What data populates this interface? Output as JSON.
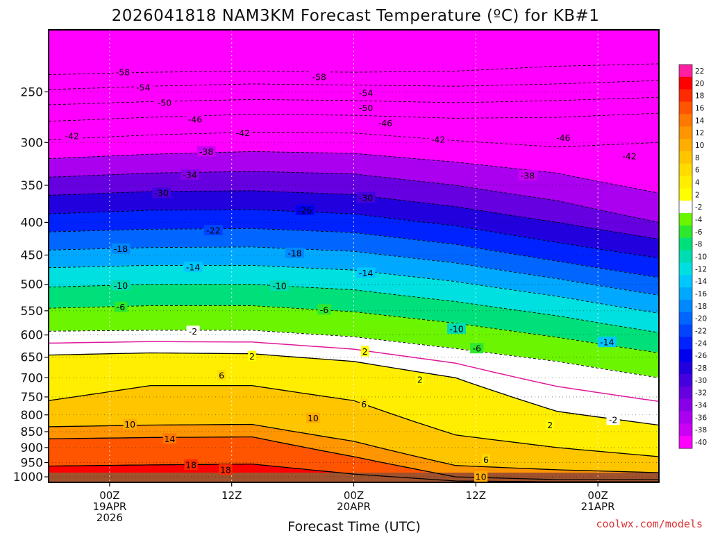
{
  "chart_data": {
    "type": "heatmap",
    "title": "2026041818 NAM3KM Forecast Temperature (ºC) for KB#1",
    "xlabel": "Forecast Time (UTC)",
    "ylabel": "",
    "credit": "coolwx.com/models",
    "x_ticks": [
      {
        "label": [
          "00Z",
          "19APR",
          "2026"
        ],
        "hour": 6
      },
      {
        "label": [
          "12Z"
        ],
        "hour": 18
      },
      {
        "label": [
          "00Z",
          "20APR"
        ],
        "hour": 30
      },
      {
        "label": [
          "12Z"
        ],
        "hour": 42
      },
      {
        "label": [
          "00Z",
          "21APR"
        ],
        "hour": 54
      }
    ],
    "x_range_hours": [
      0,
      60
    ],
    "y_ticks": [
      250,
      300,
      350,
      400,
      450,
      500,
      550,
      600,
      650,
      700,
      750,
      800,
      850,
      900,
      950,
      1000
    ],
    "y_range_hpa": [
      200,
      1020
    ],
    "y_scale": "log-pressure",
    "grid": true,
    "colorbar": {
      "labels": [
        "22",
        "20",
        "18",
        "16",
        "14",
        "12",
        "10",
        "8",
        "6",
        "4",
        "2",
        "-2",
        "-4",
        "-6",
        "-8",
        "-10",
        "-12",
        "-14",
        "-16",
        "-18",
        "-20",
        "-22",
        "-24",
        "-26",
        "-28",
        "-30",
        "-32",
        "-34",
        "-36",
        "-38",
        "-40"
      ],
      "colors": [
        "#ff1fa0",
        "#ff0000",
        "#ff2a00",
        "#ff5500",
        "#ff7800",
        "#ff9500",
        "#ffad00",
        "#ffc600",
        "#ffdb00",
        "#ffee00",
        "#ffff00",
        "#ffffff",
        "#6bf500",
        "#2ee82e",
        "#00e07a",
        "#00dcb3",
        "#00e0e0",
        "#00c8ff",
        "#00a8ff",
        "#0088ff",
        "#0066ff",
        "#0044ff",
        "#0022ff",
        "#0000ee",
        "#2200dd",
        "#4400dd",
        "#6600e0",
        "#8800e8",
        "#aa00ef",
        "#cc00f5",
        "#ff00ff"
      ],
      "placement": "right"
    },
    "isotherms": [
      {
        "temp": -58,
        "points": [
          [
            0,
            235
          ],
          [
            10,
            233
          ],
          [
            20,
            232
          ],
          [
            30,
            233
          ],
          [
            40,
            232
          ],
          [
            50,
            228
          ],
          [
            60,
            226
          ]
        ]
      },
      {
        "temp": -54,
        "points": [
          [
            0,
            248
          ],
          [
            10,
            245
          ],
          [
            20,
            243
          ],
          [
            30,
            244
          ],
          [
            40,
            245
          ],
          [
            50,
            243
          ],
          [
            60,
            240
          ]
        ]
      },
      {
        "temp": -50,
        "points": [
          [
            0,
            262
          ],
          [
            10,
            259
          ],
          [
            20,
            257
          ],
          [
            30,
            258
          ],
          [
            40,
            260
          ],
          [
            50,
            258
          ],
          [
            60,
            255
          ]
        ]
      },
      {
        "temp": -46,
        "points": [
          [
            0,
            278
          ],
          [
            10,
            274
          ],
          [
            20,
            271
          ],
          [
            30,
            272
          ],
          [
            40,
            275
          ],
          [
            50,
            274
          ],
          [
            60,
            270
          ]
        ]
      },
      {
        "temp": -42,
        "points": [
          [
            0,
            297
          ],
          [
            10,
            292
          ],
          [
            20,
            289
          ],
          [
            30,
            290
          ],
          [
            40,
            298
          ],
          [
            50,
            305
          ],
          [
            60,
            300
          ]
        ]
      },
      {
        "temp": -38,
        "points": [
          [
            0,
            318
          ],
          [
            10,
            313
          ],
          [
            20,
            310
          ],
          [
            30,
            312
          ],
          [
            40,
            322
          ],
          [
            50,
            335
          ],
          [
            60,
            360
          ]
        ]
      },
      {
        "temp": -34,
        "points": [
          [
            0,
            340
          ],
          [
            10,
            335
          ],
          [
            20,
            333
          ],
          [
            30,
            336
          ],
          [
            40,
            350
          ],
          [
            50,
            370
          ],
          [
            60,
            400
          ]
        ]
      },
      {
        "temp": -30,
        "points": [
          [
            0,
            363
          ],
          [
            10,
            358
          ],
          [
            20,
            357
          ],
          [
            30,
            362
          ],
          [
            40,
            378
          ],
          [
            50,
            400
          ],
          [
            60,
            425
          ]
        ]
      },
      {
        "temp": -26,
        "points": [
          [
            0,
            388
          ],
          [
            10,
            383
          ],
          [
            20,
            382
          ],
          [
            30,
            388
          ],
          [
            40,
            405
          ],
          [
            50,
            430
          ],
          [
            60,
            455
          ]
        ]
      },
      {
        "temp": -22,
        "points": [
          [
            0,
            414
          ],
          [
            10,
            410
          ],
          [
            20,
            409
          ],
          [
            30,
            415
          ],
          [
            40,
            433
          ],
          [
            50,
            460
          ],
          [
            60,
            488
          ]
        ]
      },
      {
        "temp": -18,
        "points": [
          [
            0,
            442
          ],
          [
            10,
            438
          ],
          [
            20,
            437
          ],
          [
            30,
            444
          ],
          [
            40,
            463
          ],
          [
            50,
            490
          ],
          [
            60,
            520
          ]
        ]
      },
      {
        "temp": -14,
        "points": [
          [
            0,
            471
          ],
          [
            10,
            467
          ],
          [
            20,
            467
          ],
          [
            30,
            475
          ],
          [
            40,
            495
          ],
          [
            50,
            522
          ],
          [
            60,
            555
          ]
        ]
      },
      {
        "temp": -10,
        "points": [
          [
            0,
            505
          ],
          [
            10,
            500
          ],
          [
            20,
            500
          ],
          [
            30,
            510
          ],
          [
            40,
            532
          ],
          [
            50,
            560
          ],
          [
            60,
            595
          ]
        ]
      },
      {
        "temp": -6,
        "points": [
          [
            0,
            545
          ],
          [
            10,
            540
          ],
          [
            20,
            540
          ],
          [
            30,
            552
          ],
          [
            40,
            575
          ],
          [
            50,
            605
          ],
          [
            60,
            640
          ]
        ]
      },
      {
        "temp": -2,
        "points": [
          [
            0,
            592
          ],
          [
            10,
            590
          ],
          [
            20,
            590
          ],
          [
            30,
            604
          ],
          [
            40,
            630
          ],
          [
            50,
            660
          ],
          [
            60,
            700
          ]
        ]
      },
      {
        "temp": 2,
        "points": [
          [
            0,
            645
          ],
          [
            10,
            640
          ],
          [
            20,
            642
          ],
          [
            30,
            660
          ],
          [
            40,
            700
          ],
          [
            50,
            790
          ],
          [
            60,
            830
          ]
        ]
      },
      {
        "temp": 6,
        "points": [
          [
            0,
            760
          ],
          [
            10,
            720
          ],
          [
            20,
            720
          ],
          [
            30,
            760
          ],
          [
            40,
            860
          ],
          [
            50,
            900
          ],
          [
            60,
            930
          ]
        ]
      },
      {
        "temp": 10,
        "points": [
          [
            0,
            835
          ],
          [
            10,
            830
          ],
          [
            20,
            828
          ],
          [
            30,
            880
          ],
          [
            40,
            960
          ],
          [
            50,
            975
          ],
          [
            60,
            985
          ]
        ]
      },
      {
        "temp": 14,
        "points": [
          [
            0,
            872
          ],
          [
            10,
            868
          ],
          [
            20,
            866
          ],
          [
            30,
            930
          ],
          [
            40,
            1000
          ],
          [
            50,
            1010
          ],
          [
            60,
            1010
          ]
        ]
      },
      {
        "temp": 18,
        "points": [
          [
            0,
            962
          ],
          [
            10,
            958
          ],
          [
            20,
            955
          ],
          [
            30,
            990
          ],
          [
            40,
            1015
          ],
          [
            50,
            1018
          ],
          [
            60,
            1018
          ]
        ]
      }
    ],
    "contour_labels": [
      {
        "text": "-58",
        "hour": 7.3,
        "p": 233
      },
      {
        "text": "-58",
        "hour": 26.6,
        "p": 237
      },
      {
        "text": "-54",
        "hour": 9.3,
        "p": 246
      },
      {
        "text": "-54",
        "hour": 31.2,
        "p": 251
      },
      {
        "text": "-50",
        "hour": 11.4,
        "p": 260
      },
      {
        "text": "-50",
        "hour": 31.2,
        "p": 265
      },
      {
        "text": "-46",
        "hour": 14.4,
        "p": 276
      },
      {
        "text": "-46",
        "hour": 33.1,
        "p": 280
      },
      {
        "text": "-46",
        "hour": 50.6,
        "p": 295
      },
      {
        "text": "-42",
        "hour": 2.3,
        "p": 293
      },
      {
        "text": "-42",
        "hour": 19.1,
        "p": 290
      },
      {
        "text": "-42",
        "hour": 38.3,
        "p": 297
      },
      {
        "text": "-42",
        "hour": 57.1,
        "p": 315
      },
      {
        "text": "-38",
        "hour": 15.5,
        "p": 310
      },
      {
        "text": "-38",
        "hour": 47.1,
        "p": 338
      },
      {
        "text": "-34",
        "hour": 13.9,
        "p": 337
      },
      {
        "text": "-30",
        "hour": 11.1,
        "p": 360
      },
      {
        "text": "-30",
        "hour": 31.2,
        "p": 366
      },
      {
        "text": "-26",
        "hour": 25.2,
        "p": 383
      },
      {
        "text": "-22",
        "hour": 16.2,
        "p": 412
      },
      {
        "text": "-18",
        "hour": 7.1,
        "p": 440
      },
      {
        "text": "-18",
        "hour": 24.2,
        "p": 447
      },
      {
        "text": "-14",
        "hour": 14.2,
        "p": 470
      },
      {
        "text": "-14",
        "hour": 31.2,
        "p": 480
      },
      {
        "text": "-14",
        "hour": 54.9,
        "p": 616
      },
      {
        "text": "-10",
        "hour": 7.1,
        "p": 502
      },
      {
        "text": "-10",
        "hour": 22.7,
        "p": 503
      },
      {
        "text": "-10",
        "hour": 40.1,
        "p": 587
      },
      {
        "text": "-6",
        "hour": 7.1,
        "p": 543
      },
      {
        "text": "-6",
        "hour": 27.1,
        "p": 548
      },
      {
        "text": "-6",
        "hour": 42.1,
        "p": 630
      },
      {
        "text": "-2",
        "hour": 14.2,
        "p": 592
      },
      {
        "text": "-2",
        "hour": 55.5,
        "p": 815
      },
      {
        "text": "2",
        "hour": 20.0,
        "p": 648
      },
      {
        "text": "2",
        "hour": 31.1,
        "p": 637
      },
      {
        "text": "2",
        "hour": 36.5,
        "p": 705
      },
      {
        "text": "2",
        "hour": 49.3,
        "p": 830
      },
      {
        "text": "6",
        "hour": 17.0,
        "p": 694
      },
      {
        "text": "6",
        "hour": 31.0,
        "p": 770
      },
      {
        "text": "6",
        "hour": 43.0,
        "p": 940
      },
      {
        "text": "10",
        "hour": 8.0,
        "p": 828
      },
      {
        "text": "10",
        "hour": 26.0,
        "p": 810
      },
      {
        "text": "10",
        "hour": 42.5,
        "p": 1000
      },
      {
        "text": "14",
        "hour": 11.9,
        "p": 872
      },
      {
        "text": "18",
        "hour": 14.0,
        "p": 958
      },
      {
        "text": "18",
        "hour": 17.4,
        "p": 975
      }
    ]
  }
}
